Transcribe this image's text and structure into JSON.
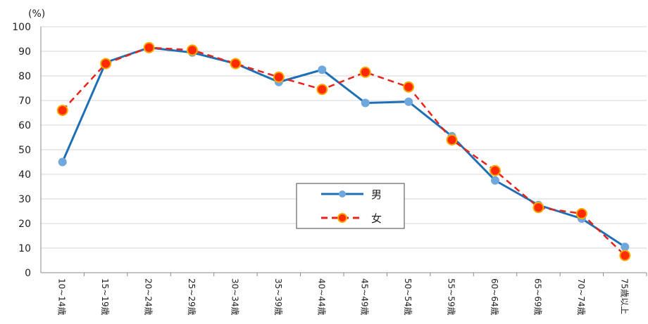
{
  "chart_data": {
    "type": "line",
    "unit_label": "(%)",
    "title": "",
    "xlabel": "",
    "ylabel": "",
    "ylim": [
      0,
      100
    ],
    "yticks": [
      "0",
      "10",
      "20",
      "30",
      "40",
      "50",
      "60",
      "70",
      "80",
      "90",
      "100"
    ],
    "categories": [
      "10~14歳",
      "15~19歳",
      "20~24歳",
      "25~29歳",
      "30~34歳",
      "35~39歳",
      "40~44歳",
      "45~49歳",
      "50~54歳",
      "55~59歳",
      "60~64歳",
      "65~69歳",
      "70~74歳",
      "75歳以上"
    ],
    "grid": true,
    "legend": "center",
    "series": [
      {
        "name": "男",
        "color": "#1f6fb5",
        "marker_color": "#6fa8dc",
        "style": "solid",
        "values": [
          45.0,
          85.5,
          91.5,
          89.5,
          85.0,
          77.5,
          82.5,
          69.0,
          69.5,
          55.5,
          37.5,
          27.5,
          22.0,
          10.5
        ]
      },
      {
        "name": "女",
        "color": "#e8231b",
        "marker_color": "#ff2a00",
        "style": "dashed",
        "values": [
          66.0,
          85.0,
          91.5,
          90.5,
          85.0,
          79.5,
          74.5,
          81.5,
          75.5,
          54.0,
          41.5,
          26.5,
          24.0,
          7.0
        ]
      }
    ]
  }
}
